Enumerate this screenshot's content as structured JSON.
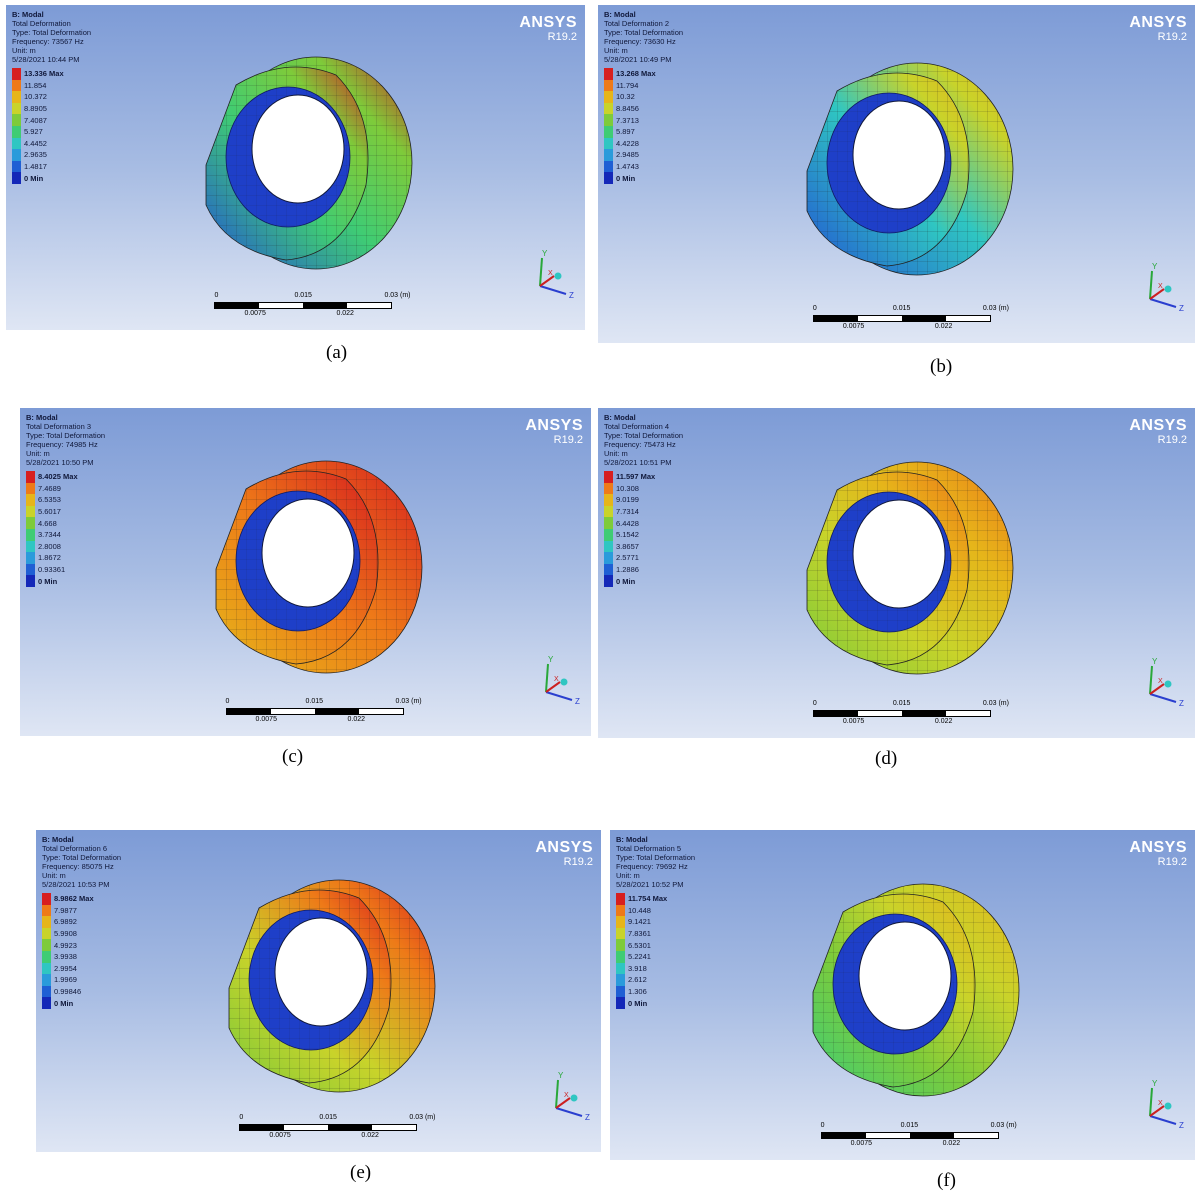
{
  "common": {
    "system": "B: Modal",
    "type": "Type: Total Deformation",
    "unit": "Unit: m",
    "brand": "ANSYS",
    "version": "R19.2",
    "scale_labels": {
      "s0": "0",
      "s015": "0.015",
      "s03": "0.03 (m)",
      "s0075": "0.0075",
      "s022": "0.022"
    },
    "axes": {
      "y": "Y",
      "x": "X",
      "z": "Z"
    },
    "legend_colors": [
      "#d71f1f",
      "#ee7a18",
      "#e6b51a",
      "#c9d32a",
      "#7ecb3a",
      "#3fcc74",
      "#2fc6c2",
      "#2a9bdb",
      "#1f5fd4",
      "#1428b8"
    ]
  },
  "panels": [
    {
      "caption": "(a)",
      "name": "Total Deformation",
      "frequency": "Frequency: 73567 Hz",
      "datetime": "5/28/2021 10:44 PM",
      "legend": [
        "13.336 Max",
        "11.854",
        "10.372",
        "8.8905",
        "7.4087",
        "5.927",
        "4.4452",
        "2.9635",
        "1.4817",
        "0 Min"
      ],
      "shape": "outer-right"
    },
    {
      "caption": "(b)",
      "name": "Total Deformation 2",
      "frequency": "Frequency: 73630 Hz",
      "datetime": "5/28/2021 10:49 PM",
      "legend": [
        "13.268 Max",
        "11.794",
        "10.32",
        "8.8456",
        "7.3713",
        "5.897",
        "4.4228",
        "2.9485",
        "1.4743",
        "0 Min"
      ],
      "shape": "bottom"
    },
    {
      "caption": "(c)",
      "name": "Total Deformation 3",
      "frequency": "Frequency: 74985 Hz",
      "datetime": "5/28/2021 10:50 PM",
      "legend": [
        "8.4025 Max",
        "7.4689",
        "6.5353",
        "5.6017",
        "4.668",
        "3.7344",
        "2.8008",
        "1.8672",
        "0.93361",
        "0 Min"
      ],
      "shape": "right-rim"
    },
    {
      "caption": "(d)",
      "name": "Total Deformation 4",
      "frequency": "Frequency: 75473 Hz",
      "datetime": "5/28/2021 10:51 PM",
      "legend": [
        "11.597 Max",
        "10.308",
        "9.0199",
        "7.7314",
        "6.4428",
        "5.1542",
        "3.8657",
        "2.5771",
        "1.2886",
        "0 Min"
      ],
      "shape": "mixed"
    },
    {
      "caption": "(e)",
      "name": "Total Deformation 6",
      "frequency": "Frequency: 85075 Hz",
      "datetime": "5/28/2021 10:53 PM",
      "legend": [
        "8.9862 Max",
        "7.9877",
        "6.9892",
        "5.9908",
        "4.9923",
        "3.9938",
        "2.9954",
        "1.9969",
        "0.99846",
        "0 Min"
      ],
      "shape": "top-rim"
    },
    {
      "caption": "(f)",
      "name": "Total Deformation 5",
      "frequency": "Frequency: 79692 Hz",
      "datetime": "5/28/2021 10:52 PM",
      "legend": [
        "11.754 Max",
        "10.448",
        "9.1421",
        "7.8361",
        "6.5301",
        "5.2241",
        "3.918",
        "2.612",
        "1.306",
        "0 Min"
      ],
      "shape": "mixed2"
    }
  ]
}
